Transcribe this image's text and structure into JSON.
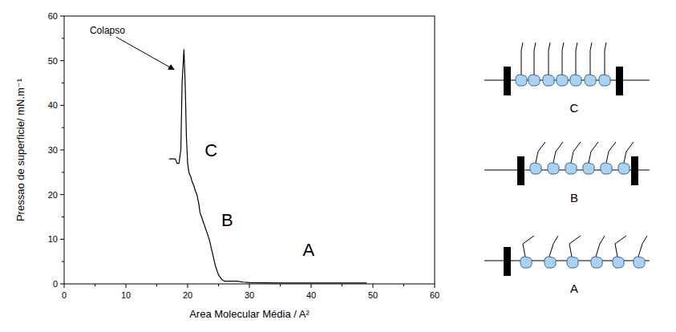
{
  "chart_data": {
    "type": "line",
    "xlabel": "Area Molecular Média / A²",
    "ylabel": "Pressao de superficie/ mN.m⁻¹",
    "x": [
      49,
      45,
      40,
      35,
      30,
      29,
      28,
      27,
      26,
      25.5,
      25,
      24.5,
      24,
      23.5,
      23,
      22.5,
      22,
      21.8,
      21.5,
      21.2,
      21,
      20.7,
      20.5,
      20.2,
      20,
      19.8,
      19.6,
      19.4,
      19.3,
      19.1,
      18.9,
      18.6,
      18.3,
      18,
      17.5,
      17
    ],
    "values": [
      0.2,
      0.2,
      0.2,
      0.2,
      0.3,
      0.4,
      0.6,
      0.6,
      0.6,
      1,
      2,
      4,
      7,
      10,
      12,
      14,
      16,
      18,
      20,
      21,
      22,
      23,
      24,
      25,
      27,
      33,
      45,
      52.5,
      50,
      45,
      30,
      27,
      27,
      28,
      28,
      28
    ],
    "color": "#000000",
    "xlim": [
      0,
      60
    ],
    "ylim": [
      0,
      60
    ],
    "xticks": [
      0,
      10,
      20,
      30,
      40,
      50,
      60
    ],
    "yticks": [
      0,
      10,
      20,
      30,
      40,
      50,
      60
    ],
    "grid": false,
    "annotations": [
      {
        "text": "Colapso",
        "x": 7,
        "y": 56,
        "arrow_to": [
          17.8,
          48
        ]
      },
      {
        "text": "A",
        "x": 39.6,
        "y": 6.3
      },
      {
        "text": "B",
        "x": 26.4,
        "y": 13
      },
      {
        "text": "C",
        "x": 23.8,
        "y": 28.5
      }
    ]
  },
  "diagrams": [
    {
      "label": "C"
    },
    {
      "label": "B"
    },
    {
      "label": "A"
    }
  ]
}
